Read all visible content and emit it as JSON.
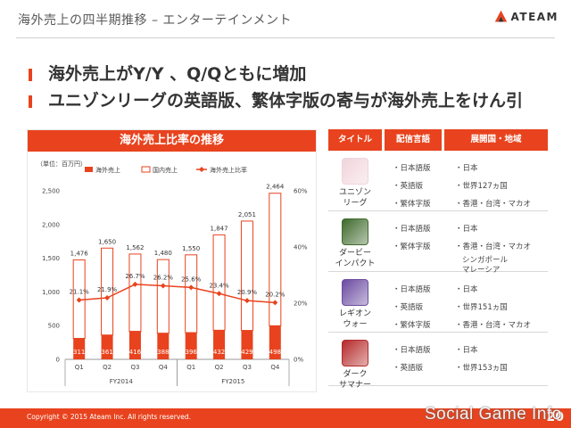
{
  "slide": {
    "title": "海外売上の四半期推移 – エンターテインメント",
    "logo_text": "ATEAM",
    "bullets": [
      "海外売上がY/Y 、Q/Qともに増加",
      "ユニゾンリーグの英語版、繁体字版の寄与が海外売上をけん引"
    ]
  },
  "chart_panel": {
    "header": "海外売上比率の推移"
  },
  "chart_data": {
    "type": "bar",
    "unit_label": "（単位：百万円）",
    "legend": [
      "海外売上",
      "国内売上",
      "海外売上比率"
    ],
    "categories": [
      "Q1",
      "Q2",
      "Q3",
      "Q4",
      "Q1",
      "Q2",
      "Q3",
      "Q4"
    ],
    "groups": [
      {
        "label": "FY2014",
        "span": [
          0,
          3
        ]
      },
      {
        "label": "FY2015",
        "span": [
          4,
          7
        ]
      }
    ],
    "series": [
      {
        "name": "海外売上",
        "type": "bar",
        "values": [
          311,
          361,
          416,
          388,
          396,
          432,
          429,
          498
        ]
      },
      {
        "name": "国内売上",
        "type": "bar",
        "values": [
          1165,
          1289,
          1146,
          1092,
          1154,
          1415,
          1622,
          1966
        ]
      },
      {
        "name": "海外売上比率",
        "type": "line",
        "axis": "right",
        "values": [
          21.1,
          21.9,
          26.7,
          26.2,
          25.6,
          23.4,
          20.9,
          20.2
        ]
      }
    ],
    "total_labels": [
      "1,476",
      "1,650",
      "1,562",
      "1,480",
      "1,550",
      "1,847",
      "2,051",
      "2,464"
    ],
    "overseas_labels": [
      "311",
      "361",
      "416",
      "388",
      "396",
      "432",
      "429",
      "498"
    ],
    "ratio_labels": [
      "21.1%",
      "21.9%",
      "26.7%",
      "26.2%",
      "25.6%",
      "23.4%",
      "20.9%",
      "20.2%"
    ],
    "y_left": {
      "ylim": [
        0,
        2500
      ],
      "ticks": [
        "0",
        "500",
        "1,000",
        "1,500",
        "2,000",
        "2,500"
      ]
    },
    "y_right": {
      "ylim": [
        0,
        60
      ],
      "ticks": [
        "0%",
        "20%",
        "40%",
        "60%"
      ]
    },
    "colors": {
      "overseas": "#e8431e",
      "domestic": "#e8431e",
      "ratio_line": "#e8431e"
    }
  },
  "table": {
    "headers": [
      "タイトル",
      "配信言語",
      "展開国・地域"
    ],
    "rows": [
      {
        "name": "ユニゾン\nリーグ",
        "icon": "unison-league-app-icon",
        "icon_color": "#f1d4dc",
        "languages": [
          "・日本語版",
          "・英語版",
          "・繁体字版"
        ],
        "regions": [
          "・日本",
          "・世界127ヵ国",
          "・香港・台湾・マカオ"
        ]
      },
      {
        "name": "ダービー\nインパクト",
        "icon": "derby-impact-app-icon",
        "icon_color": "#3f6a2c",
        "languages": [
          "・日本語版",
          "・繁体字版"
        ],
        "regions": [
          "・日本",
          "・香港・台湾・マカオ",
          "シンガポール",
          "マレーシア"
        ]
      },
      {
        "name": "レギオン\nウォー",
        "icon": "legion-war-app-icon",
        "icon_color": "#6b4aa0",
        "languages": [
          "・日本語版",
          "・英語版",
          "・繁体字版"
        ],
        "regions": [
          "・日本",
          "・世界151ヵ国",
          "・香港・台湾・マカオ"
        ]
      },
      {
        "name": "ダーク\nサマナー",
        "icon": "dark-summoner-app-icon",
        "icon_color": "#b52a2a",
        "languages": [
          "・日本語版",
          "・英語版"
        ],
        "regions": [
          "・日本",
          "・世界153ヵ国"
        ]
      }
    ]
  },
  "footer": {
    "copyright": "Copyright © 2015 Ateam Inc. All rights reserved.",
    "page": "20",
    "watermark": "Social Game Info"
  }
}
